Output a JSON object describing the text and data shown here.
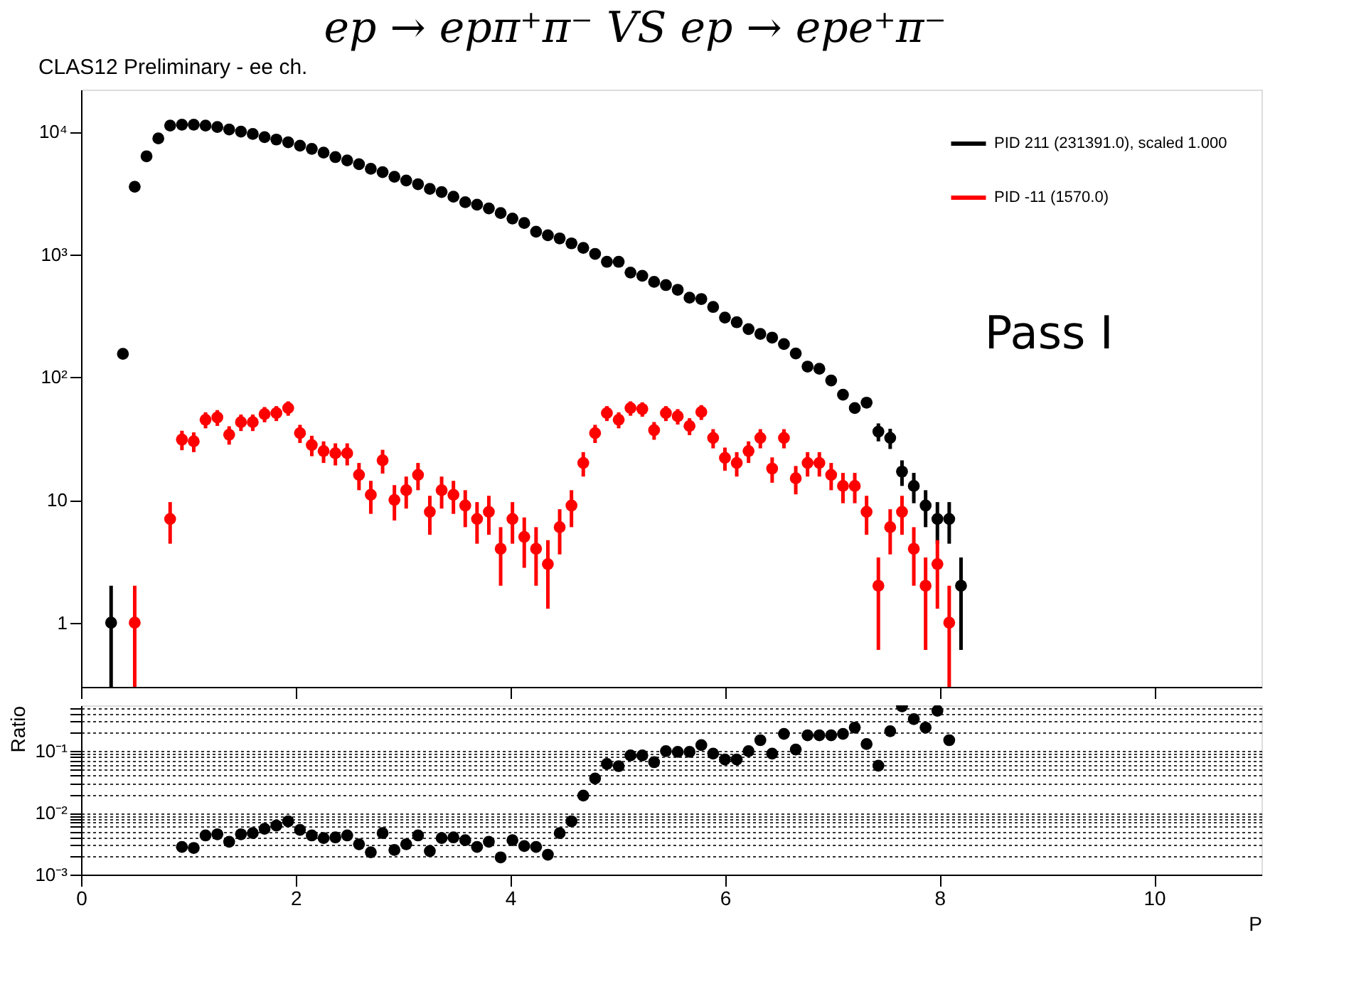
{
  "chart_data": [
    {
      "type": "scatter",
      "title": "ep → epπ⁺π⁻ VS ep → epe⁺π⁻",
      "subtitle": "CLAS12 Preliminary - ee ch.",
      "annotations": [
        "Pass I"
      ],
      "series": [
        {
          "name": "PID 211 (231391.0), scaled 1.000",
          "color": "#000000",
          "x": [
            0.28,
            0.39,
            0.5,
            0.61,
            0.72,
            0.83,
            0.94,
            1.05,
            1.16,
            1.27,
            1.38,
            1.49,
            1.6,
            1.71,
            1.82,
            1.93,
            2.04,
            2.15,
            2.26,
            2.37,
            2.48,
            2.59,
            2.7,
            2.81,
            2.92,
            3.03,
            3.14,
            3.25,
            3.36,
            3.47,
            3.58,
            3.69,
            3.8,
            3.91,
            4.02,
            4.13,
            4.24,
            4.35,
            4.46,
            4.57,
            4.68,
            4.79,
            4.9,
            5.01,
            5.12,
            5.23,
            5.34,
            5.45,
            5.56,
            5.67,
            5.78,
            5.89,
            6.0,
            6.11,
            6.22,
            6.33,
            6.44,
            6.55,
            6.66,
            6.77,
            6.88,
            6.99,
            7.1,
            7.21,
            7.32,
            7.43,
            7.54,
            7.65,
            7.76,
            7.87,
            7.98,
            8.09,
            8.2
          ],
          "values": [
            1,
            155,
            3560,
            6300,
            8800,
            11200,
            11400,
            11400,
            11200,
            10900,
            10400,
            10000,
            9570,
            9010,
            8620,
            8190,
            7690,
            7240,
            6750,
            6200,
            5830,
            5430,
            4980,
            4680,
            4290,
            4000,
            3730,
            3420,
            3220,
            2950,
            2660,
            2540,
            2370,
            2170,
            1960,
            1800,
            1530,
            1430,
            1350,
            1230,
            1130,
            1010,
            870,
            870,
            711,
            670,
            597,
            562,
            515,
            444,
            433,
            373,
            306,
            280,
            246,
            225,
            210,
            186,
            156,
            122,
            117,
            94,
            72,
            56,
            62,
            36,
            32,
            17,
            13,
            9,
            7,
            7,
            2
          ],
          "errors": [
            [
              0.3,
              2
            ],
            null,
            null,
            null,
            null,
            null,
            null,
            null,
            null,
            null,
            null,
            null,
            null,
            null,
            null,
            null,
            null,
            null,
            null,
            null,
            null,
            null,
            null,
            null,
            null,
            null,
            null,
            null,
            null,
            null,
            null,
            null,
            null,
            null,
            null,
            null,
            null,
            null,
            null,
            null,
            null,
            null,
            null,
            null,
            null,
            null,
            null,
            null,
            null,
            null,
            null,
            null,
            null,
            null,
            null,
            null,
            null,
            null,
            null,
            null,
            null,
            null,
            null,
            null,
            null,
            6,
            6,
            4,
            3.6,
            3,
            2.6,
            2.6,
            1.4
          ]
        },
        {
          "name": "PID -11 (1570.0)",
          "color": "#ff0000",
          "x": [
            0.5,
            0.83,
            0.94,
            1.05,
            1.16,
            1.27,
            1.38,
            1.49,
            1.6,
            1.71,
            1.82,
            1.93,
            2.04,
            2.15,
            2.26,
            2.37,
            2.48,
            2.59,
            2.7,
            2.81,
            2.92,
            3.03,
            3.14,
            3.25,
            3.36,
            3.47,
            3.58,
            3.69,
            3.8,
            3.91,
            4.02,
            4.13,
            4.24,
            4.35,
            4.46,
            4.57,
            4.68,
            4.79,
            4.9,
            5.01,
            5.12,
            5.23,
            5.34,
            5.45,
            5.56,
            5.67,
            5.78,
            5.89,
            6.0,
            6.11,
            6.22,
            6.33,
            6.44,
            6.55,
            6.66,
            6.77,
            6.88,
            6.99,
            7.1,
            7.21,
            7.32,
            7.43,
            7.54,
            7.65,
            7.76,
            7.87,
            7.98,
            8.09
          ],
          "values": [
            1,
            7,
            31,
            30,
            45,
            47,
            34,
            43,
            43,
            50,
            51,
            56,
            35,
            28,
            25,
            24,
            24,
            16,
            11,
            21,
            10,
            12,
            16,
            8,
            12,
            11,
            9,
            7,
            8,
            4,
            7,
            5,
            4,
            3,
            6,
            9,
            20,
            35,
            51,
            45,
            56,
            55,
            37,
            51,
            48,
            40,
            52,
            32,
            22,
            20,
            25,
            32,
            18,
            32,
            15,
            20,
            20,
            16,
            13,
            13,
            8,
            2,
            6,
            8,
            4,
            2,
            3,
            1
          ],
          "errors": [
            [
              0.3,
              2
            ],
            2.6,
            5.6,
            5.5,
            6.7,
            6.9,
            5.8,
            6.6,
            6.6,
            7.1,
            7.1,
            7.5,
            5.9,
            5.3,
            5,
            4.9,
            4.9,
            4,
            3.3,
            4.6,
            3.2,
            3.5,
            4,
            2.8,
            3.5,
            3.3,
            3,
            2.6,
            2.8,
            2,
            2.6,
            2.2,
            2,
            1.7,
            2.4,
            3,
            4.5,
            5.9,
            7.1,
            6.7,
            7.5,
            7.4,
            6.1,
            7.1,
            6.9,
            6.3,
            7.2,
            5.7,
            4.7,
            4.5,
            5,
            5.7,
            4.2,
            5.7,
            3.9,
            4.5,
            4.5,
            4,
            3.6,
            3.6,
            2.8,
            1.4,
            2.4,
            2.8,
            2,
            1.4,
            1.7,
            [
              0.3,
              2
            ]
          ]
        }
      ],
      "xlim": [
        0,
        11
      ],
      "xticks": [
        0,
        2,
        4,
        6,
        8,
        10
      ],
      "ylim": [
        0.3,
        22000
      ],
      "yticks": [
        1,
        10,
        {
          "value": 100,
          "label": "10²"
        },
        {
          "value": 1000,
          "label": "10³"
        },
        {
          "value": 10000,
          "label": "10⁴"
        }
      ],
      "log": true,
      "legend": "top right",
      "marker": "circle",
      "tick_labels": "y"
    },
    {
      "type": "scatter",
      "xlabel": "P",
      "ylabel": "Ratio",
      "series": [
        {
          "color": "#000000",
          "x": [
            0.94,
            1.05,
            1.16,
            1.27,
            1.38,
            1.49,
            1.6,
            1.71,
            1.82,
            1.93,
            2.04,
            2.15,
            2.26,
            2.37,
            2.48,
            2.59,
            2.7,
            2.81,
            2.92,
            3.03,
            3.14,
            3.25,
            3.36,
            3.47,
            3.58,
            3.69,
            3.8,
            3.91,
            4.02,
            4.13,
            4.24,
            4.35,
            4.46,
            4.57,
            4.68,
            4.79,
            4.9,
            5.01,
            5.12,
            5.23,
            5.34,
            5.45,
            5.56,
            5.67,
            5.78,
            5.89,
            6.0,
            6.11,
            6.22,
            6.33,
            6.44,
            6.55,
            6.66,
            6.77,
            6.88,
            6.99,
            7.1,
            7.21,
            7.32,
            7.43,
            7.54,
            7.65,
            7.76,
            7.87,
            7.98,
            8.09
          ],
          "values": [
            0.0028,
            0.0027,
            0.0043,
            0.0045,
            0.0034,
            0.0045,
            0.0047,
            0.0055,
            0.0062,
            0.0073,
            0.0053,
            0.0043,
            0.0039,
            0.004,
            0.0043,
            0.0031,
            0.0023,
            0.0047,
            0.0025,
            0.0031,
            0.0043,
            0.0024,
            0.0039,
            0.004,
            0.0036,
            0.0028,
            0.0034,
            0.0019,
            0.0036,
            0.0029,
            0.0028,
            0.0021,
            0.0047,
            0.0073,
            0.019,
            0.036,
            0.062,
            0.057,
            0.085,
            0.085,
            0.066,
            0.1,
            0.097,
            0.097,
            0.125,
            0.091,
            0.073,
            0.073,
            0.1,
            0.15,
            0.091,
            0.19,
            0.106,
            0.18,
            0.18,
            0.18,
            0.19,
            0.24,
            0.13,
            0.058,
            0.21,
            0.53,
            0.33,
            0.24,
            0.45,
            0.15
          ]
        }
      ],
      "xlim": [
        0,
        11
      ],
      "xticks": [
        0,
        2,
        4,
        6,
        8,
        10
      ],
      "ylim": [
        0.001,
        0.55
      ],
      "yticks": [
        {
          "value": 0.001,
          "label": "10⁻³"
        },
        {
          "value": 0.002,
          "label": null
        },
        {
          "value": 0.003,
          "label": null
        },
        {
          "value": 0.004,
          "label": null
        },
        {
          "value": 0.005,
          "label": null
        },
        {
          "value": 0.006,
          "label": null
        },
        {
          "value": 0.007,
          "label": null
        },
        {
          "value": 0.008,
          "label": null
        },
        {
          "value": 0.009,
          "label": null
        },
        {
          "value": 0.01,
          "label": "10⁻²"
        },
        {
          "value": 0.02,
          "label": null
        },
        {
          "value": 0.03,
          "label": null
        },
        {
          "value": 0.04,
          "label": null
        },
        {
          "value": 0.05,
          "label": null
        },
        {
          "value": 0.06,
          "label": null
        },
        {
          "value": 0.07,
          "label": null
        },
        {
          "value": 0.08,
          "label": null
        },
        {
          "value": 0.09,
          "label": null
        },
        {
          "value": 0.1,
          "label": "10⁻¹"
        },
        {
          "value": 0.2,
          "label": null
        },
        {
          "value": 0.3,
          "label": null
        },
        {
          "value": 0.4,
          "label": null
        },
        {
          "value": 0.5,
          "label": null
        }
      ],
      "log": true,
      "grid": "y",
      "marker": "circle"
    }
  ]
}
